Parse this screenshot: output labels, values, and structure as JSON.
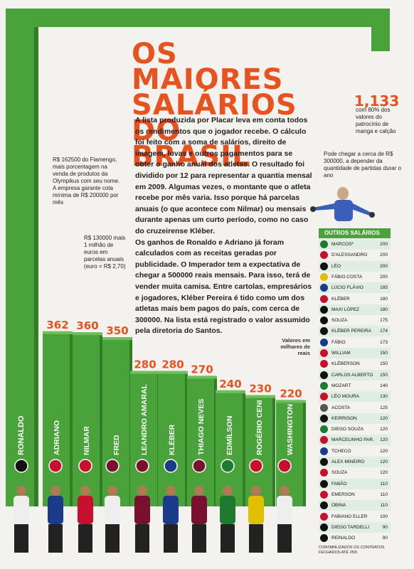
{
  "title_lines": [
    "OS MAIORES",
    "SALÁRIOS",
    "DO BRASIL"
  ],
  "body_paragraphs": [
    "A lista produzida por Placar leva em conta todos os rendimentos que o jogador recebe. O cálculo foi feito com a soma de salários, direito de imagem, luvas e outros pagamentos para se obter o ganho anual dos atletas. O resultado foi dividido por 12 para representar a quantia mensal em 2009. Algumas vezes, o montante que o atleta recebe por mês varia. Isso porque há parcelas anuais (o que acontece com Nilmar) ou mensais durante apenas um curto período, como no caso do cruzeirense Kléber.",
    "Os ganhos de Ronaldo e Adriano já foram calculados com as receitas geradas por publicidade. O Imperador tem a expectativa de chegar a 500000 reais mensais. Para isso, terá de vender muita camisa. Entre cartolas, empresários e jogadores, Kléber Pereira é tido como um dos atletas mais bem pagos do país, com cerca de 300000. Na lista está registrado o valor assumido pela diretoria do Santos."
  ],
  "notes": {
    "adriano": "R$ 162500 do Flamengo, mais porcentagem na venda de produtos da Olympikus com seu nome. A empresa garante cota mínima de R$ 200000 por mês",
    "nilmar": "R$ 130000 mais 1 milhão de euros em parcelas anuais (euro = R$ 2,70)",
    "marcos_value": "1,133",
    "marcos_note": "com 80% dos valores do patrocínio de manga e calção",
    "marcos_extra": "Pode chegar a cerca de R$ 300000, a depender da quantidade de partidas durar o ano"
  },
  "unit_note": "Valores em milhares de reais",
  "table_title": "OUTROS SALÁRIOS",
  "footnote": "CONTABILIZADOS OS CONTRATOS FECHADOS ATÉ 25/5",
  "colors": {
    "accent": "#e8521f",
    "green": "#4aa33a",
    "dark_green": "#2f7d25"
  },
  "chart_data": [
    {
      "type": "bar",
      "categories": [
        "RONALDO",
        "ADRIANO",
        "NILMAR",
        "FRED",
        "LEANDRO AMARAL",
        "KLÉBER",
        "THIAGO NEVES",
        "EDMÍLSON",
        "ROGÉRIO CENI",
        "WASHINGTON"
      ],
      "values": [
        1133,
        362,
        360,
        350,
        280,
        280,
        270,
        240,
        230,
        220
      ],
      "value_labels": [
        "",
        "362",
        "360",
        "350",
        "280",
        "280",
        "270",
        "240",
        "230",
        "220"
      ],
      "ylabel": "Valores em milhares de reais"
    },
    {
      "type": "table",
      "title": "OUTROS SALÁRIOS",
      "rows": [
        {
          "name": "MARCOS*",
          "value": 200
        },
        {
          "name": "D'ALESSANDRO",
          "value": 200
        },
        {
          "name": "LÉO",
          "value": 200
        },
        {
          "name": "FÁBIO COSTA",
          "value": 200
        },
        {
          "name": "LÚCIO FLÁVIO",
          "value": 185
        },
        {
          "name": "KLÉBER",
          "value": 180
        },
        {
          "name": "MAXI LÓPEZ",
          "value": 180
        },
        {
          "name": "SOUZA",
          "value": 175
        },
        {
          "name": "KLÉBER PEREIRA",
          "value": 174
        },
        {
          "name": "FÁBIO",
          "value": 173
        },
        {
          "name": "WILLIAM",
          "value": 150
        },
        {
          "name": "KLÉBERSON",
          "value": 150
        },
        {
          "name": "CARLOS ALBERTO",
          "value": 150
        },
        {
          "name": "MOZART",
          "value": 140
        },
        {
          "name": "LÉO MOURA",
          "value": 130
        },
        {
          "name": "ACOSTA",
          "value": 125
        },
        {
          "name": "KEIRRISON",
          "value": 120
        },
        {
          "name": "DIEGO SOUZA",
          "value": 120
        },
        {
          "name": "MARCELINHO PAR.",
          "value": 120
        },
        {
          "name": "TCHECO",
          "value": 120
        },
        {
          "name": "ALEX MINEIRO",
          "value": 120
        },
        {
          "name": "SOUZA",
          "value": 120
        },
        {
          "name": "FABÃO",
          "value": 110
        },
        {
          "name": "EMERSON",
          "value": 110
        },
        {
          "name": "OBINA",
          "value": 110
        },
        {
          "name": "FABIANO ELLER",
          "value": 100
        },
        {
          "name": "DIEGO TARDELLI",
          "value": 90
        },
        {
          "name": "REINALDO",
          "value": 90
        }
      ],
      "badge_colors": [
        "#1d7a2e",
        "#c8102e",
        "#111",
        "#e0c000",
        "#1a3a8a",
        "#c8102e",
        "#111",
        "#111",
        "#111",
        "#1a3a8a",
        "#c8102e",
        "#c8102e",
        "#111",
        "#1d7a2e",
        "#c8102e",
        "#555",
        "#111",
        "#1d7a2e",
        "#c8102e",
        "#1a3a8a",
        "#111",
        "#c8102e",
        "#111",
        "#c8102e",
        "#111",
        "#c8102e",
        "#111",
        "#111"
      ]
    }
  ]
}
